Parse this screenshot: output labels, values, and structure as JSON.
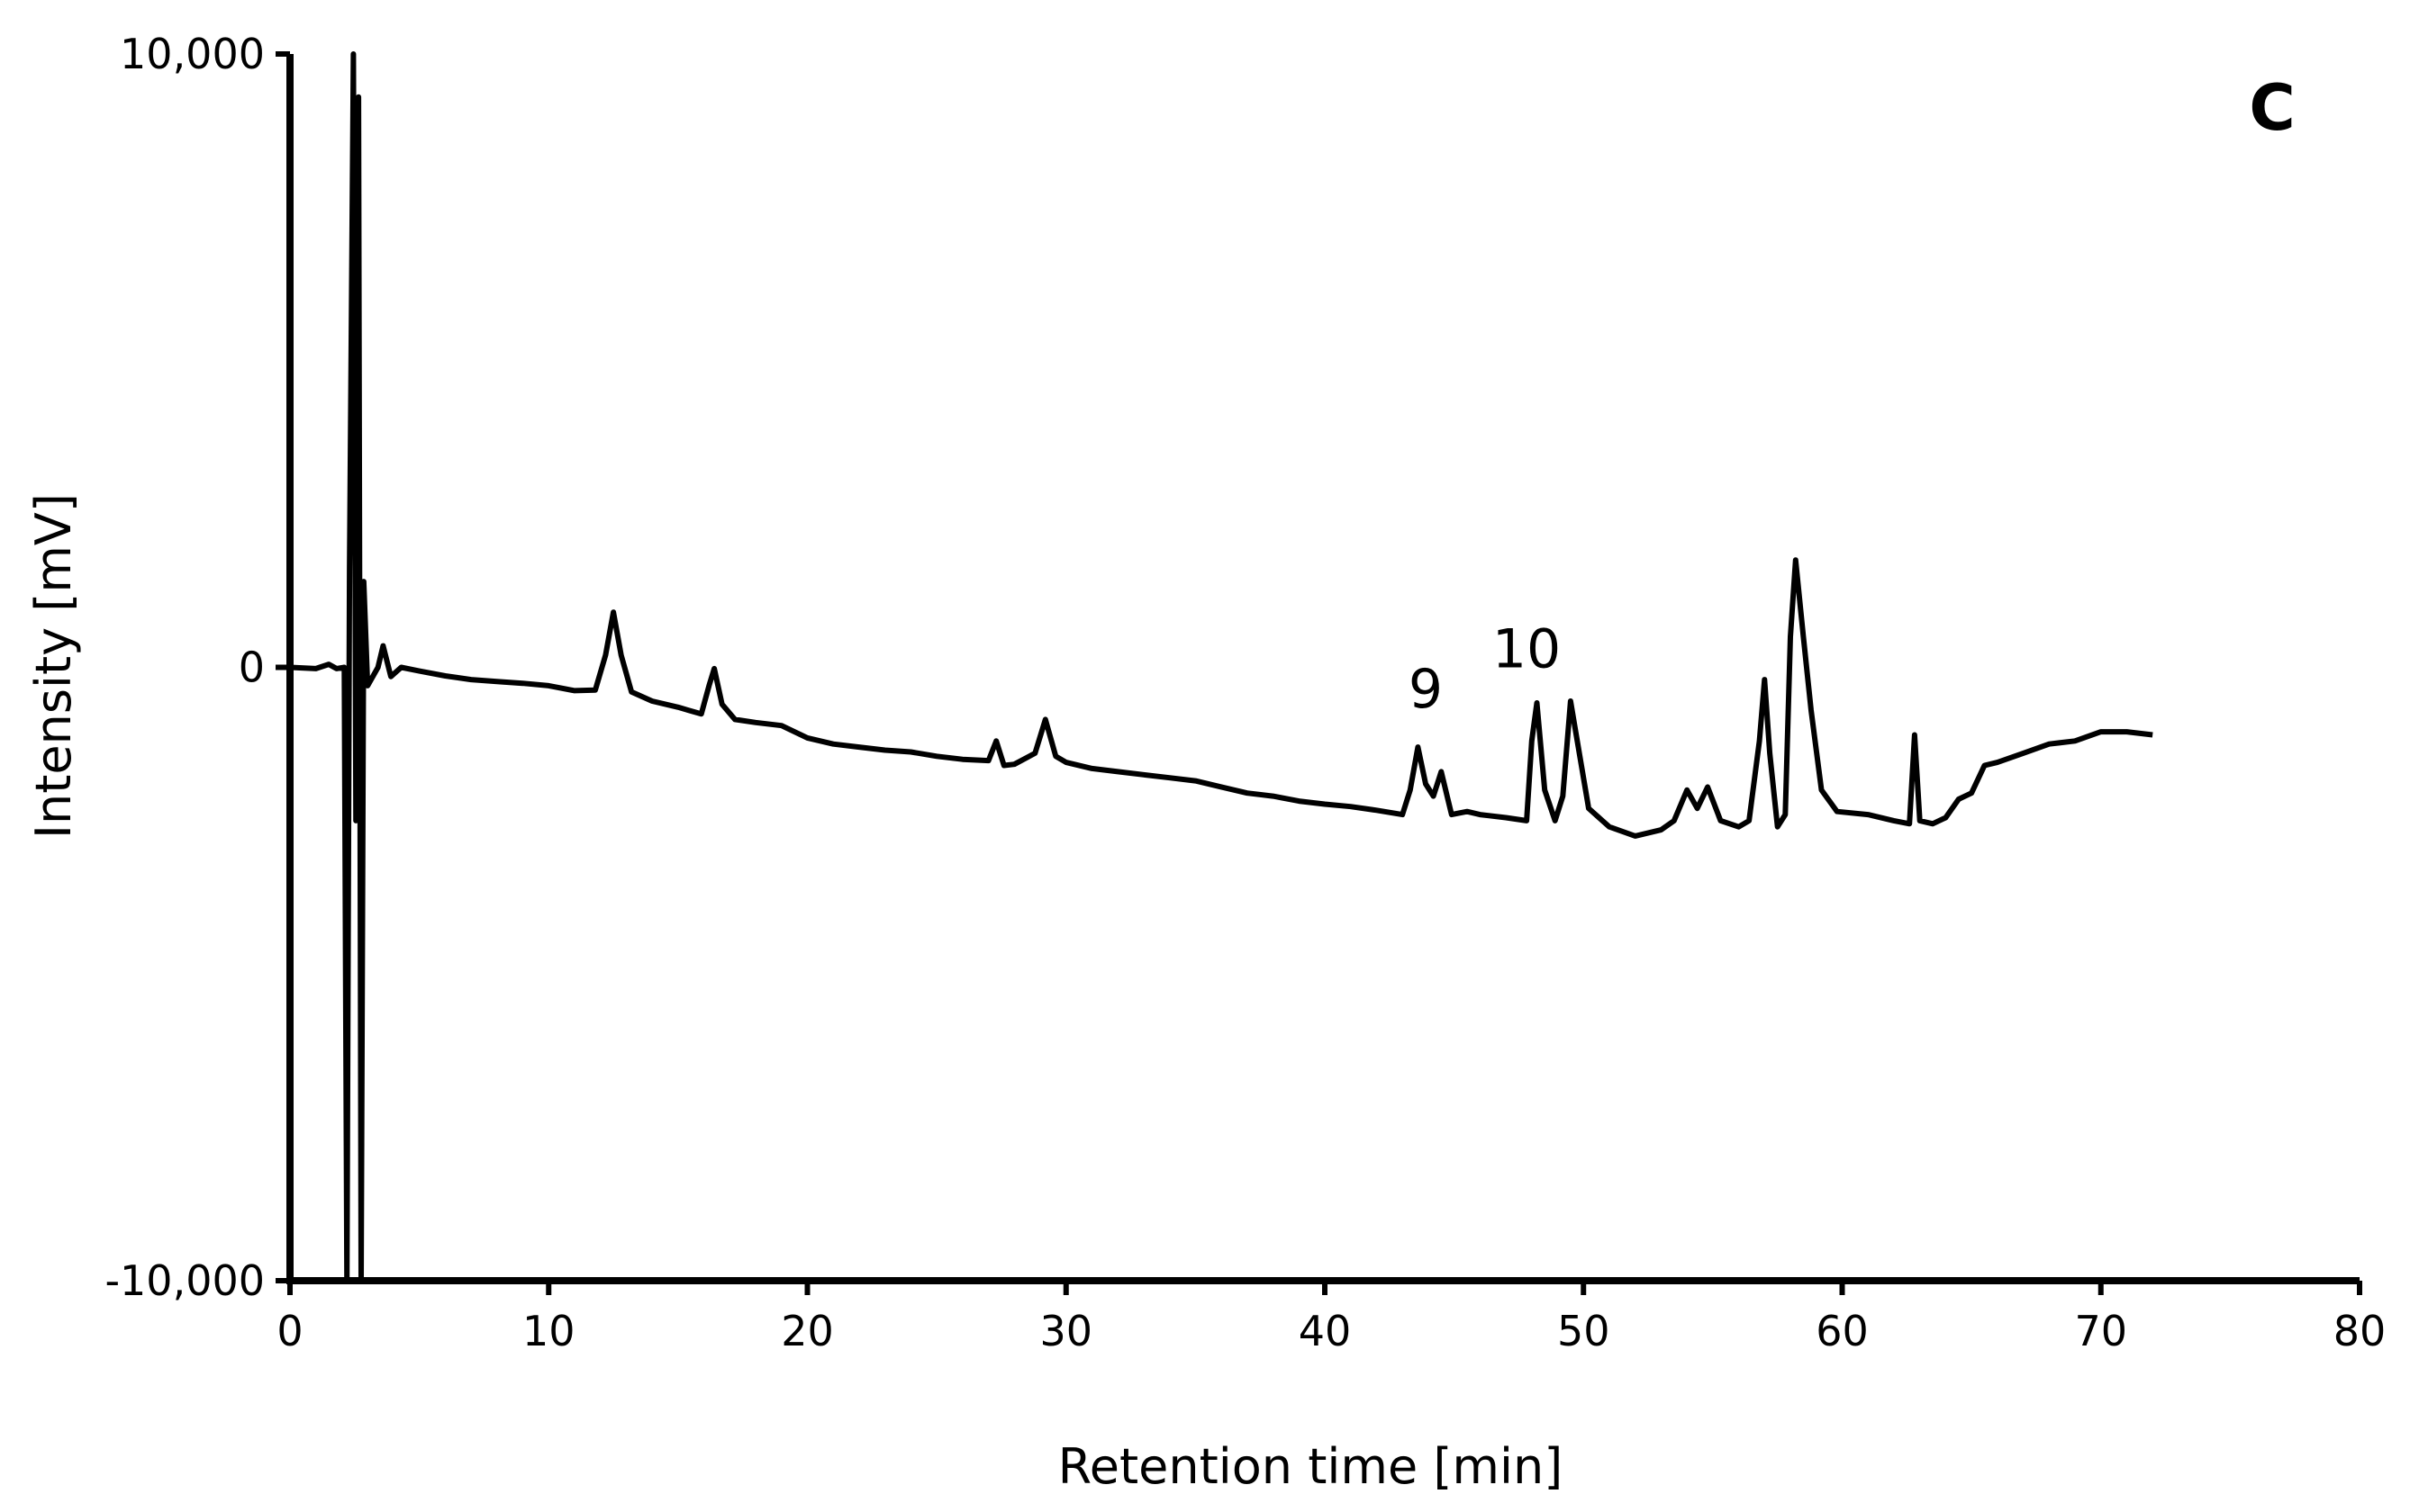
{
  "chart_data": {
    "type": "line",
    "title": "",
    "panel_label": "C",
    "xlabel": "Retention time [min]",
    "ylabel": "Intensity [mV]",
    "xlim": [
      0,
      80
    ],
    "ylim": [
      -10000,
      10000
    ],
    "x_ticks": [
      0,
      10,
      20,
      30,
      40,
      50,
      60,
      70,
      80
    ],
    "x_tick_labels": [
      "0",
      "10",
      "20",
      "30",
      "40",
      "50",
      "60",
      "70",
      "80"
    ],
    "y_ticks": [
      -10000,
      0,
      10000
    ],
    "y_tick_labels": [
      "-10,000",
      "0",
      "10,000"
    ],
    "grid": false,
    "legend": "none",
    "line_color": "#000000",
    "series": [
      {
        "points": [
          [
            0,
            0
          ],
          [
            1.0,
            -20
          ],
          [
            1.5,
            50
          ],
          [
            1.8,
            -20
          ],
          [
            2.1,
            0
          ],
          [
            2.2,
            -10000
          ],
          [
            2.3,
            1600
          ],
          [
            2.45,
            10000
          ],
          [
            2.55,
            -2500
          ],
          [
            2.65,
            9300
          ],
          [
            2.75,
            -10000
          ],
          [
            2.85,
            1400
          ],
          [
            3.0,
            -300
          ],
          [
            3.4,
            0
          ],
          [
            3.6,
            350
          ],
          [
            3.9,
            -150
          ],
          [
            4.3,
            0
          ],
          [
            5,
            -60
          ],
          [
            6,
            -140
          ],
          [
            7,
            -200
          ],
          [
            8,
            -230
          ],
          [
            9,
            -260
          ],
          [
            10,
            -300
          ],
          [
            11,
            -380
          ],
          [
            11.8,
            -370
          ],
          [
            12.2,
            200
          ],
          [
            12.5,
            900
          ],
          [
            12.8,
            200
          ],
          [
            13.2,
            -400
          ],
          [
            14,
            -550
          ],
          [
            15,
            -650
          ],
          [
            15.9,
            -760
          ],
          [
            16.2,
            -300
          ],
          [
            16.4,
            -20
          ],
          [
            16.7,
            -600
          ],
          [
            17.2,
            -850
          ],
          [
            18,
            -900
          ],
          [
            19,
            -950
          ],
          [
            20,
            -1150
          ],
          [
            21,
            -1250
          ],
          [
            22,
            -1300
          ],
          [
            23,
            -1350
          ],
          [
            24,
            -1380
          ],
          [
            25,
            -1450
          ],
          [
            26,
            -1500
          ],
          [
            27,
            -1520
          ],
          [
            27.3,
            -1200
          ],
          [
            27.6,
            -1600
          ],
          [
            28,
            -1580
          ],
          [
            28.8,
            -1400
          ],
          [
            29.2,
            -850
          ],
          [
            29.6,
            -1450
          ],
          [
            30,
            -1550
          ],
          [
            31,
            -1650
          ],
          [
            32,
            -1700
          ],
          [
            33,
            -1750
          ],
          [
            34,
            -1800
          ],
          [
            35,
            -1850
          ],
          [
            36,
            -1950
          ],
          [
            37,
            -2050
          ],
          [
            38,
            -2100
          ],
          [
            39,
            -2180
          ],
          [
            40,
            -2230
          ],
          [
            41,
            -2270
          ],
          [
            42,
            -2330
          ],
          [
            43,
            -2400
          ],
          [
            43.3,
            -2000
          ],
          [
            43.6,
            -1300
          ],
          [
            43.9,
            -1900
          ],
          [
            44.2,
            -2100
          ],
          [
            44.5,
            -1700
          ],
          [
            44.9,
            -2400
          ],
          [
            45.5,
            -2350
          ],
          [
            46,
            -2400
          ],
          [
            47,
            -2450
          ],
          [
            47.8,
            -2500
          ],
          [
            48.0,
            -1200
          ],
          [
            48.2,
            -580
          ],
          [
            48.5,
            -2000
          ],
          [
            48.9,
            -2500
          ],
          [
            49.2,
            -2100
          ],
          [
            49.5,
            -550
          ],
          [
            49.8,
            -1300
          ],
          [
            50.2,
            -2300
          ],
          [
            50.6,
            -2450
          ],
          [
            51,
            -2600
          ],
          [
            52,
            -2750
          ],
          [
            53,
            -2650
          ],
          [
            53.5,
            -2500
          ],
          [
            54,
            -2000
          ],
          [
            54.4,
            -2300
          ],
          [
            54.8,
            -1950
          ],
          [
            55.3,
            -2500
          ],
          [
            56,
            -2600
          ],
          [
            56.4,
            -2500
          ],
          [
            56.8,
            -1200
          ],
          [
            57.0,
            -200
          ],
          [
            57.2,
            -1400
          ],
          [
            57.5,
            -2600
          ],
          [
            57.8,
            -2400
          ],
          [
            58.0,
            500
          ],
          [
            58.2,
            1750
          ],
          [
            58.5,
            500
          ],
          [
            58.8,
            -700
          ],
          [
            59.2,
            -2000
          ],
          [
            59.8,
            -2350
          ],
          [
            61,
            -2400
          ],
          [
            62,
            -2500
          ],
          [
            62.6,
            -2550
          ],
          [
            62.8,
            -1100
          ],
          [
            63.0,
            -2500
          ],
          [
            63.5,
            -2550
          ],
          [
            64,
            -2450
          ],
          [
            64.5,
            -2150
          ],
          [
            65,
            -2050
          ],
          [
            65.5,
            -1600
          ],
          [
            66,
            -1550
          ],
          [
            67,
            -1400
          ],
          [
            68,
            -1250
          ],
          [
            69,
            -1200
          ],
          [
            70,
            -1050
          ],
          [
            71,
            -1050
          ],
          [
            72,
            -1100
          ]
        ]
      }
    ],
    "annotations": [
      {
        "text": "9",
        "x": 43.9,
        "y": -650
      },
      {
        "text": "10",
        "x": 47.8,
        "y": 0
      }
    ]
  }
}
